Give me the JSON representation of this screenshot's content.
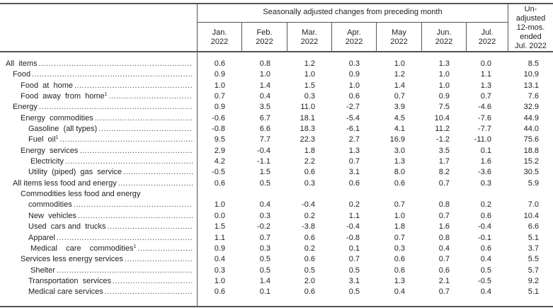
{
  "header": {
    "group_label": "Seasonally adjusted changes from preceding month",
    "unadjusted_label": [
      "Un-",
      "adjusted",
      "12-mos.",
      "ended",
      "Jul. 2022"
    ],
    "months": [
      [
        "Jan.",
        "2022"
      ],
      [
        "Feb.",
        "2022"
      ],
      [
        "Mar.",
        "2022"
      ],
      [
        "Apr.",
        "2022"
      ],
      [
        "May",
        "2022"
      ],
      [
        "Jun.",
        "2022"
      ],
      [
        "Jul.",
        "2022"
      ]
    ]
  },
  "rows": [
    {
      "label": "All  items",
      "indent": 0,
      "values": [
        "0.6",
        "0.8",
        "1.2",
        "0.3",
        "1.0",
        "1.3",
        "0.0",
        "8.5"
      ]
    },
    {
      "label": "Food",
      "indent": 1,
      "values": [
        "0.9",
        "1.0",
        "1.0",
        "0.9",
        "1.2",
        "1.0",
        "1.1",
        "10.9"
      ]
    },
    {
      "label": "Food  at  home",
      "indent": 2,
      "values": [
        "1.0",
        "1.4",
        "1.5",
        "1.0",
        "1.4",
        "1.0",
        "1.3",
        "13.1"
      ]
    },
    {
      "label": "Food  away  from  home",
      "sup": "1",
      "indent": 2,
      "values": [
        "0.7",
        "0.4",
        "0.3",
        "0.6",
        "0.7",
        "0.9",
        "0.7",
        "7.6"
      ]
    },
    {
      "label": "Energy",
      "indent": 1,
      "values": [
        "0.9",
        "3.5",
        "11.0",
        "-2.7",
        "3.9",
        "7.5",
        "-4.6",
        "32.9"
      ]
    },
    {
      "label": "Energy  commodities",
      "indent": 2,
      "values": [
        "-0.6",
        "6.7",
        "18.1",
        "-5.4",
        "4.5",
        "10.4",
        "-7.6",
        "44.9"
      ]
    },
    {
      "label": "Gasoline  (all types)",
      "indent": 3,
      "values": [
        "-0.8",
        "6.6",
        "18.3",
        "-6.1",
        "4.1",
        "11.2",
        "-7.7",
        "44.0"
      ]
    },
    {
      "label": "Fuel  oil",
      "sup": "1",
      "indent": 3,
      "values": [
        "9.5",
        "7.7",
        "22.3",
        "2.7",
        "16.9",
        "-1.2",
        "-11.0",
        "75.6"
      ]
    },
    {
      "label": "Energy  services",
      "indent": 2,
      "values": [
        "2.9",
        "-0.4",
        "1.8",
        "1.3",
        "3.0",
        "3.5",
        "0.1",
        "18.8"
      ]
    },
    {
      "label": "Electricity",
      "indent": 4,
      "values": [
        "4.2",
        "-1.1",
        "2.2",
        "0.7",
        "1.3",
        "1.7",
        "1.6",
        "15.2"
      ]
    },
    {
      "label": "Utility  (piped)  gas  service",
      "indent": 3,
      "values": [
        "-0.5",
        "1.5",
        "0.6",
        "3.1",
        "8.0",
        "8.2",
        "-3.6",
        "30.5"
      ]
    },
    {
      "label": "All items less food and energy",
      "indent": 1,
      "values": [
        "0.6",
        "0.5",
        "0.3",
        "0.6",
        "0.6",
        "0.7",
        "0.3",
        "5.9"
      ]
    },
    {
      "label": "Commodities less food and energy",
      "indent": 2,
      "values": []
    },
    {
      "label": "commodities",
      "indent": 3,
      "values": [
        "1.0",
        "0.4",
        "-0.4",
        "0.2",
        "0.7",
        "0.8",
        "0.2",
        "7.0"
      ]
    },
    {
      "label": "New  vehicles",
      "indent": 3,
      "values": [
        "0.0",
        "0.3",
        "0.2",
        "1.1",
        "1.0",
        "0.7",
        "0.6",
        "10.4"
      ]
    },
    {
      "label": "Used  cars and  trucks",
      "indent": 3,
      "values": [
        "1.5",
        "-0.2",
        "-3.8",
        "-0.4",
        "1.8",
        "1.6",
        "-0.4",
        "6.6"
      ]
    },
    {
      "label": "Apparel",
      "indent": 3,
      "values": [
        "1.1",
        "0.7",
        "0.6",
        "-0.8",
        "0.7",
        "0.8",
        "-0.1",
        "5.1"
      ]
    },
    {
      "label": "Medical    care    commodities",
      "sup": "1",
      "indent": 4,
      "values": [
        "0.9",
        "0.3",
        "0.2",
        "0.1",
        "0.3",
        "0.4",
        "0.6",
        "3.7"
      ]
    },
    {
      "label": "Services less energy services",
      "indent": 2,
      "values": [
        "0.4",
        "0.5",
        "0.6",
        "0.7",
        "0.6",
        "0.7",
        "0.4",
        "5.5"
      ]
    },
    {
      "label": "Shelter",
      "indent": 4,
      "values": [
        "0.3",
        "0.5",
        "0.5",
        "0.5",
        "0.6",
        "0.6",
        "0.5",
        "5.7"
      ]
    },
    {
      "label": "Transportation  services",
      "indent": 3,
      "values": [
        "1.0",
        "1.4",
        "2.0",
        "3.1",
        "1.3",
        "2.1",
        "-0.5",
        "9.2"
      ]
    },
    {
      "label": "Medical care services",
      "indent": 3,
      "values": [
        "0.6",
        "0.1",
        "0.6",
        "0.5",
        "0.4",
        "0.7",
        "0.4",
        "5.1"
      ]
    }
  ]
}
